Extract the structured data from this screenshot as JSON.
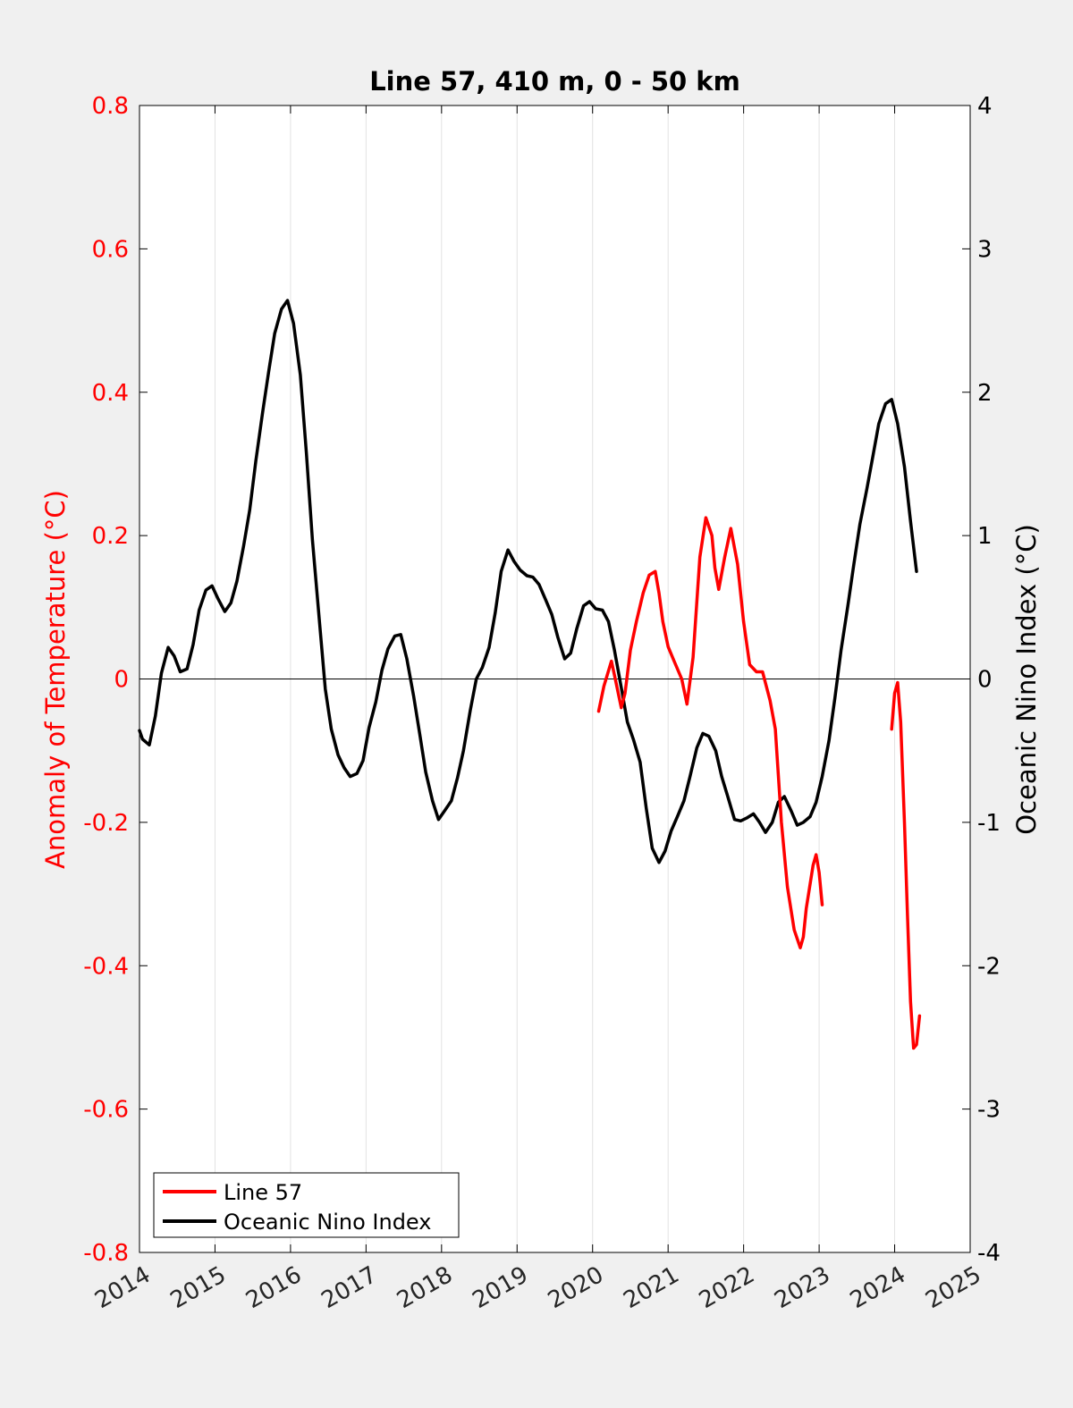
{
  "chart_data": {
    "type": "line",
    "title": "Line 57, 410 m, 0 - 50 km",
    "ylabel_left": "Anomaly of Temperature (°C)",
    "ylabel_right": "Oceanic Nino Index (°C)",
    "xlabel": "",
    "xlim": [
      2014,
      2025
    ],
    "ylim_left": [
      -0.8,
      0.8
    ],
    "ylim_right": [
      -4,
      4
    ],
    "x_ticks": [
      "2014",
      "2015",
      "2016",
      "2017",
      "2018",
      "2019",
      "2020",
      "2021",
      "2022",
      "2023",
      "2024",
      "2025"
    ],
    "y_ticks_left": [
      "-0.8",
      "-0.6",
      "-0.4",
      "-0.2",
      "0",
      "0.2",
      "0.4",
      "0.6",
      "0.8"
    ],
    "y_ticks_right": [
      "-4",
      "-3",
      "-2",
      "-1",
      "0",
      "1",
      "2",
      "3",
      "4"
    ],
    "grid": "vertical",
    "legend_position": "bottom-left",
    "colors": {
      "line57": "#ff0000",
      "oni": "#000000",
      "left_axis": "#ff0000",
      "right_axis": "#000000"
    },
    "series": [
      {
        "name": "Line 57",
        "axis": "left",
        "segments": [
          {
            "x": [
              2020.08,
              2020.15,
              2020.25,
              2020.3,
              2020.38,
              2020.43,
              2020.5,
              2020.58,
              2020.67,
              2020.75,
              2020.83,
              2020.88,
              2020.93,
              2021.0,
              2021.08,
              2021.18,
              2021.25,
              2021.33,
              2021.42,
              2021.5,
              2021.58,
              2021.62,
              2021.67,
              2021.75,
              2021.83,
              2021.92,
              2022.0,
              2022.08,
              2022.17,
              2022.25,
              2022.35,
              2022.42,
              2022.5,
              2022.58,
              2022.67,
              2022.75,
              2022.79,
              2022.83,
              2022.92,
              2022.96,
              2023.0,
              2023.04
            ],
            "y": [
              -0.045,
              -0.01,
              0.025,
              0.0,
              -0.04,
              -0.02,
              0.04,
              0.08,
              0.12,
              0.145,
              0.15,
              0.12,
              0.08,
              0.045,
              0.025,
              0.0,
              -0.035,
              0.03,
              0.17,
              0.225,
              0.2,
              0.155,
              0.125,
              0.17,
              0.21,
              0.16,
              0.08,
              0.02,
              0.01,
              0.01,
              -0.03,
              -0.07,
              -0.2,
              -0.29,
              -0.35,
              -0.375,
              -0.36,
              -0.32,
              -0.26,
              -0.245,
              -0.27,
              -0.315
            ]
          },
          {
            "x": [
              2023.96,
              2024.0,
              2024.04,
              2024.08,
              2024.13,
              2024.17,
              2024.21,
              2024.25,
              2024.29,
              2024.33
            ],
            "y": [
              -0.07,
              -0.02,
              -0.005,
              -0.06,
              -0.2,
              -0.33,
              -0.45,
              -0.515,
              -0.51,
              -0.47
            ]
          }
        ]
      },
      {
        "name": "Oceanic Nino Index",
        "axis": "right",
        "segments": [
          {
            "x": [
              2014.0,
              2014.04,
              2014.13,
              2014.21,
              2014.29,
              2014.38,
              2014.46,
              2014.54,
              2014.63,
              2014.71,
              2014.79,
              2014.88,
              2014.96,
              2015.04,
              2015.13,
              2015.21,
              2015.29,
              2015.38,
              2015.46,
              2015.54,
              2015.63,
              2015.71,
              2015.79,
              2015.88,
              2015.96,
              2016.04,
              2016.13,
              2016.21,
              2016.29,
              2016.38,
              2016.46,
              2016.54,
              2016.63,
              2016.71,
              2016.79,
              2016.88,
              2016.96,
              2017.04,
              2017.13,
              2017.21,
              2017.29,
              2017.38,
              2017.46,
              2017.54,
              2017.63,
              2017.71,
              2017.79,
              2017.88,
              2017.96,
              2018.04,
              2018.13,
              2018.21,
              2018.29,
              2018.38,
              2018.46,
              2018.54,
              2018.63,
              2018.71,
              2018.79,
              2018.88,
              2018.96,
              2019.04,
              2019.13,
              2019.21,
              2019.29,
              2019.38,
              2019.46,
              2019.54,
              2019.63,
              2019.71,
              2019.79,
              2019.88,
              2019.96,
              2020.04,
              2020.13,
              2020.21,
              2020.29,
              2020.38,
              2020.46,
              2020.54,
              2020.63,
              2020.71,
              2020.79,
              2020.88,
              2020.96,
              2021.04,
              2021.13,
              2021.21,
              2021.29,
              2021.38,
              2021.46,
              2021.54,
              2021.63,
              2021.71,
              2021.79,
              2021.88,
              2021.96,
              2022.04,
              2022.13,
              2022.21,
              2022.29,
              2022.38,
              2022.46,
              2022.54,
              2022.63,
              2022.71,
              2022.79,
              2022.88,
              2022.96,
              2023.04,
              2023.13,
              2023.21,
              2023.29,
              2023.38,
              2023.46,
              2023.54,
              2023.63,
              2023.71,
              2023.79,
              2023.88,
              2023.96,
              2024.04,
              2024.13,
              2024.21,
              2024.29
            ],
            "y": [
              -0.36,
              -0.42,
              -0.46,
              -0.26,
              0.04,
              0.22,
              0.16,
              0.05,
              0.07,
              0.24,
              0.48,
              0.62,
              0.65,
              0.56,
              0.47,
              0.53,
              0.68,
              0.93,
              1.18,
              1.52,
              1.86,
              2.14,
              2.41,
              2.58,
              2.64,
              2.48,
              2.12,
              1.58,
              0.97,
              0.42,
              -0.07,
              -0.35,
              -0.53,
              -0.62,
              -0.68,
              -0.66,
              -0.57,
              -0.34,
              -0.16,
              0.06,
              0.21,
              0.3,
              0.31,
              0.14,
              -0.12,
              -0.38,
              -0.65,
              -0.85,
              -0.98,
              -0.92,
              -0.85,
              -0.69,
              -0.5,
              -0.22,
              0.0,
              0.08,
              0.22,
              0.46,
              0.75,
              0.9,
              0.82,
              0.76,
              0.72,
              0.71,
              0.66,
              0.55,
              0.45,
              0.29,
              0.14,
              0.18,
              0.35,
              0.51,
              0.54,
              0.49,
              0.48,
              0.4,
              0.2,
              -0.06,
              -0.3,
              -0.42,
              -0.58,
              -0.9,
              -1.18,
              -1.28,
              -1.2,
              -1.06,
              -0.95,
              -0.85,
              -0.68,
              -0.48,
              -0.38,
              -0.4,
              -0.5,
              -0.68,
              -0.82,
              -0.98,
              -0.99,
              -0.97,
              -0.94,
              -1.0,
              -1.07,
              -1.0,
              -0.86,
              -0.82,
              -0.92,
              -1.02,
              -1.0,
              -0.96,
              -0.86,
              -0.68,
              -0.43,
              -0.13,
              0.2,
              0.51,
              0.8,
              1.08,
              1.32,
              1.55,
              1.78,
              1.92,
              1.95,
              1.78,
              1.48,
              1.1,
              0.75
            ]
          }
        ]
      }
    ]
  }
}
